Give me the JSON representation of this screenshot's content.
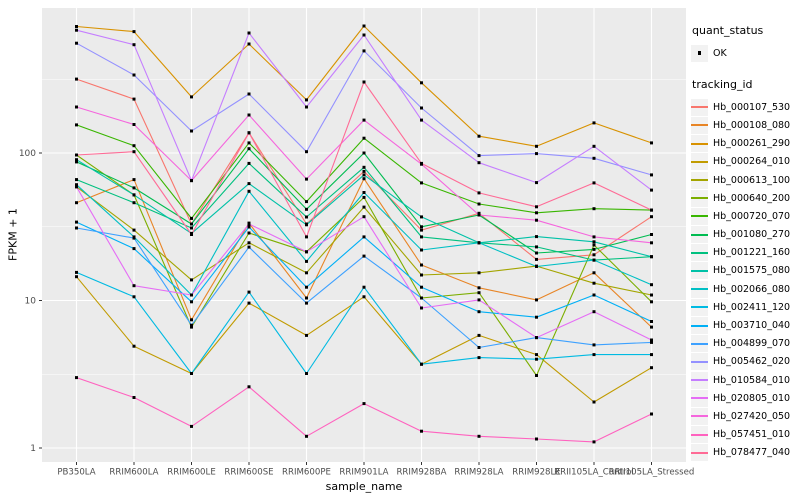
{
  "chart_data": {
    "type": "line",
    "title": "",
    "xlabel": "sample_name",
    "ylabel": "FPKM + 1",
    "y_scale": "log10",
    "y_ticks": [
      1,
      10,
      100
    ],
    "y_tick_labels": [
      "1",
      "10",
      "100"
    ],
    "y_minor_ticks": [
      3.162,
      31.62,
      316.2
    ],
    "ylim": [
      1,
      1000
    ],
    "grid": true,
    "legend_position": "right",
    "point_marker": "black-square",
    "panel_bg": "#EBEBEB",
    "gridline_color": "#FFFFFF",
    "tick_label_color": "#4D4D4D",
    "legends": {
      "quant_status": {
        "title": "quant_status",
        "items": [
          "OK"
        ]
      },
      "tracking_id": {
        "title": "tracking_id"
      }
    },
    "categories": [
      "PB350LA",
      "RRIM600LA",
      "RRIM600LE",
      "RRIM600SE",
      "RRIM600PE",
      "RRIM901LA",
      "RRIM928BA",
      "RRIM928LA",
      "RRIM928LE",
      "RRII105LA_Control",
      "RRII105LA_Stressed"
    ],
    "series": [
      {
        "name": "Hb_000107_530",
        "color": "#F8766D",
        "values": [
          317,
          232,
          33,
          137,
          33,
          75,
          30,
          39,
          19,
          20.4,
          37
        ]
      },
      {
        "name": "Hb_000108_080",
        "color": "#E88526",
        "values": [
          46,
          66,
          7.4,
          33.5,
          10.4,
          67,
          17.4,
          12.2,
          10.1,
          15.4,
          6.6
        ]
      },
      {
        "name": "Hb_000261_290",
        "color": "#D89200",
        "values": [
          720,
          665,
          240,
          548,
          229,
          726,
          299,
          130,
          111,
          160,
          117
        ]
      },
      {
        "name": "Hb_000264_010",
        "color": "#C19B00",
        "values": [
          14.5,
          4.9,
          3.2,
          9.6,
          5.8,
          10.6,
          3.7,
          5.8,
          4.3,
          2.05,
          3.5
        ]
      },
      {
        "name": "Hb_000613_100",
        "color": "#A4A500",
        "values": [
          59,
          30,
          13.8,
          24.6,
          15.4,
          43,
          14.9,
          15.4,
          17.1,
          13.1,
          10.9
        ]
      },
      {
        "name": "Hb_000640_200",
        "color": "#7CAE00",
        "values": [
          97,
          52,
          6.6,
          28.7,
          21.4,
          50,
          10.4,
          11.3,
          3.1,
          23.8,
          9.8
        ]
      },
      {
        "name": "Hb_000720_070",
        "color": "#39B600",
        "values": [
          155,
          112,
          36,
          117,
          46.8,
          126,
          62.7,
          45.1,
          39.3,
          41.9,
          41
        ]
      },
      {
        "name": "Hb_001080_270",
        "color": "#00BC51",
        "values": [
          87,
          58,
          33,
          107,
          41.5,
          100,
          31.6,
          38,
          21,
          22.2,
          28
        ]
      },
      {
        "name": "Hb_001221_160",
        "color": "#00C07F",
        "values": [
          66,
          46,
          31,
          85,
          36.8,
          80,
          27,
          24.6,
          23.1,
          18.8,
          19.8
        ]
      },
      {
        "name": "Hb_001575_080",
        "color": "#00C1A7",
        "values": [
          90,
          52,
          28.5,
          62,
          32.6,
          71,
          36.9,
          24.6,
          27.1,
          25,
          19.8
        ]
      },
      {
        "name": "Hb_002066_080",
        "color": "#00BFC4",
        "values": [
          61,
          27,
          10.9,
          55,
          18.4,
          54,
          22,
          24.6,
          17,
          18.8,
          12.8
        ]
      },
      {
        "name": "Hb_002411_120",
        "color": "#00BAE2",
        "values": [
          15.5,
          10.6,
          3.2,
          11.4,
          3.2,
          12.3,
          3.7,
          4.1,
          4.0,
          4.3,
          4.3
        ]
      },
      {
        "name": "Hb_003710_040",
        "color": "#00B0F6",
        "values": [
          34,
          22.5,
          9.8,
          31.5,
          12.3,
          27,
          12.3,
          8.4,
          7.7,
          10.9,
          7.2
        ]
      },
      {
        "name": "Hb_004899_070",
        "color": "#3DA1FF",
        "values": [
          31,
          26.5,
          6.8,
          23,
          9.6,
          20,
          10.4,
          4.8,
          5.6,
          5.0,
          5.2
        ]
      },
      {
        "name": "Hb_005462_020",
        "color": "#9491FF",
        "values": [
          555,
          338,
          141,
          251,
          102,
          492,
          202,
          96,
          99,
          92,
          71
        ]
      },
      {
        "name": "Hb_010584_010",
        "color": "#C57EFF",
        "values": [
          680,
          542,
          65,
          651,
          205,
          631,
          167,
          86,
          63,
          111,
          56
        ]
      },
      {
        "name": "Hb_020805_010",
        "color": "#E56DF5",
        "values": [
          59,
          12.6,
          10.9,
          33,
          21.4,
          37,
          8.9,
          10.1,
          5.6,
          8.4,
          5.4
        ]
      },
      {
        "name": "Hb_027420_050",
        "color": "#F566DD",
        "values": [
          205,
          156,
          65,
          181,
          66.5,
          167,
          84,
          38,
          35,
          27,
          24.6
        ]
      },
      {
        "name": "Hb_057451_010",
        "color": "#FF62BF",
        "values": [
          3.0,
          2.2,
          1.4,
          2.6,
          1.2,
          2.0,
          1.3,
          1.2,
          1.15,
          1.1,
          1.7
        ]
      },
      {
        "name": "Hb_078477_040",
        "color": "#FF6B96",
        "values": [
          97,
          102,
          28,
          137,
          27,
          303,
          85,
          53.6,
          43.2,
          62.7,
          41
        ]
      }
    ]
  }
}
